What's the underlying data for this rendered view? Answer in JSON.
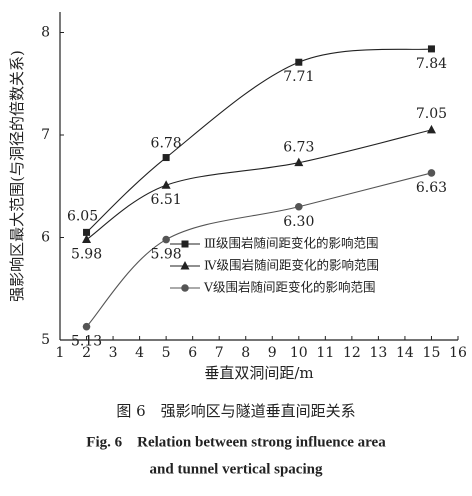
{
  "chart_data": {
    "type": "line",
    "x_label": "垂直双洞间距/m",
    "y_label": "强影响区最大范围(与洞径的倍数关系)",
    "xlim": [
      1,
      16
    ],
    "xticks": [
      1,
      2,
      3,
      4,
      5,
      6,
      7,
      8,
      9,
      10,
      11,
      12,
      13,
      14,
      15,
      16
    ],
    "ylim": [
      5,
      8.2
    ],
    "yticks": [
      5,
      6,
      7,
      8
    ],
    "x": [
      2,
      5,
      10,
      15
    ],
    "series": [
      {
        "name": "Ⅲ级围岩随间距变化的影响范围",
        "color": "#222222",
        "marker": "square",
        "values": [
          6.05,
          6.78,
          7.71,
          7.84
        ],
        "value_labels": [
          "6.05",
          "6.78",
          "7.71",
          "7.84"
        ]
      },
      {
        "name": "Ⅳ级围岩随间距变化的影响范围",
        "color": "#222222",
        "marker": "triangle",
        "values": [
          5.98,
          6.51,
          6.73,
          7.05
        ],
        "value_labels": [
          "5.98",
          "6.51",
          "6.73",
          "7.05"
        ]
      },
      {
        "name": "Ⅴ级围岩随间距变化的影响范围",
        "color": "#555555",
        "marker": "circle",
        "values": [
          5.13,
          5.98,
          6.3,
          6.63
        ],
        "value_labels": [
          "5.13",
          "5.98",
          "6.30",
          "6.63"
        ]
      }
    ]
  },
  "caption": [
    "图 6　强影响区与隧道垂直间距关系",
    "Fig. 6　Relation between strong influence area",
    "and tunnel vertical spacing"
  ]
}
